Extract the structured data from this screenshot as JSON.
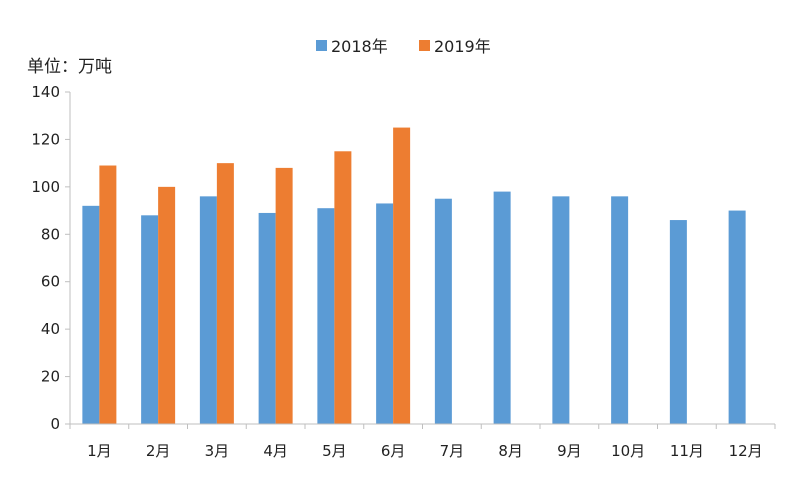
{
  "chart_data": {
    "type": "bar",
    "unit_label": "单位：万吨",
    "categories": [
      "1月",
      "2月",
      "3月",
      "4月",
      "5月",
      "6月",
      "7月",
      "8月",
      "9月",
      "10月",
      "11月",
      "12月"
    ],
    "series": [
      {
        "name": "2018年",
        "color": "#5b9bd5",
        "values": [
          92,
          88,
          96,
          89,
          91,
          93,
          95,
          98,
          96,
          96,
          86,
          90
        ]
      },
      {
        "name": "2019年",
        "color": "#ed7d31",
        "values": [
          109,
          100,
          110,
          108,
          115,
          125,
          null,
          null,
          null,
          null,
          null,
          null
        ]
      }
    ],
    "ylim": [
      0,
      140
    ],
    "yticks": [
      0,
      20,
      40,
      60,
      80,
      100,
      120,
      140
    ],
    "grid": false,
    "legend_position": "top-center"
  }
}
